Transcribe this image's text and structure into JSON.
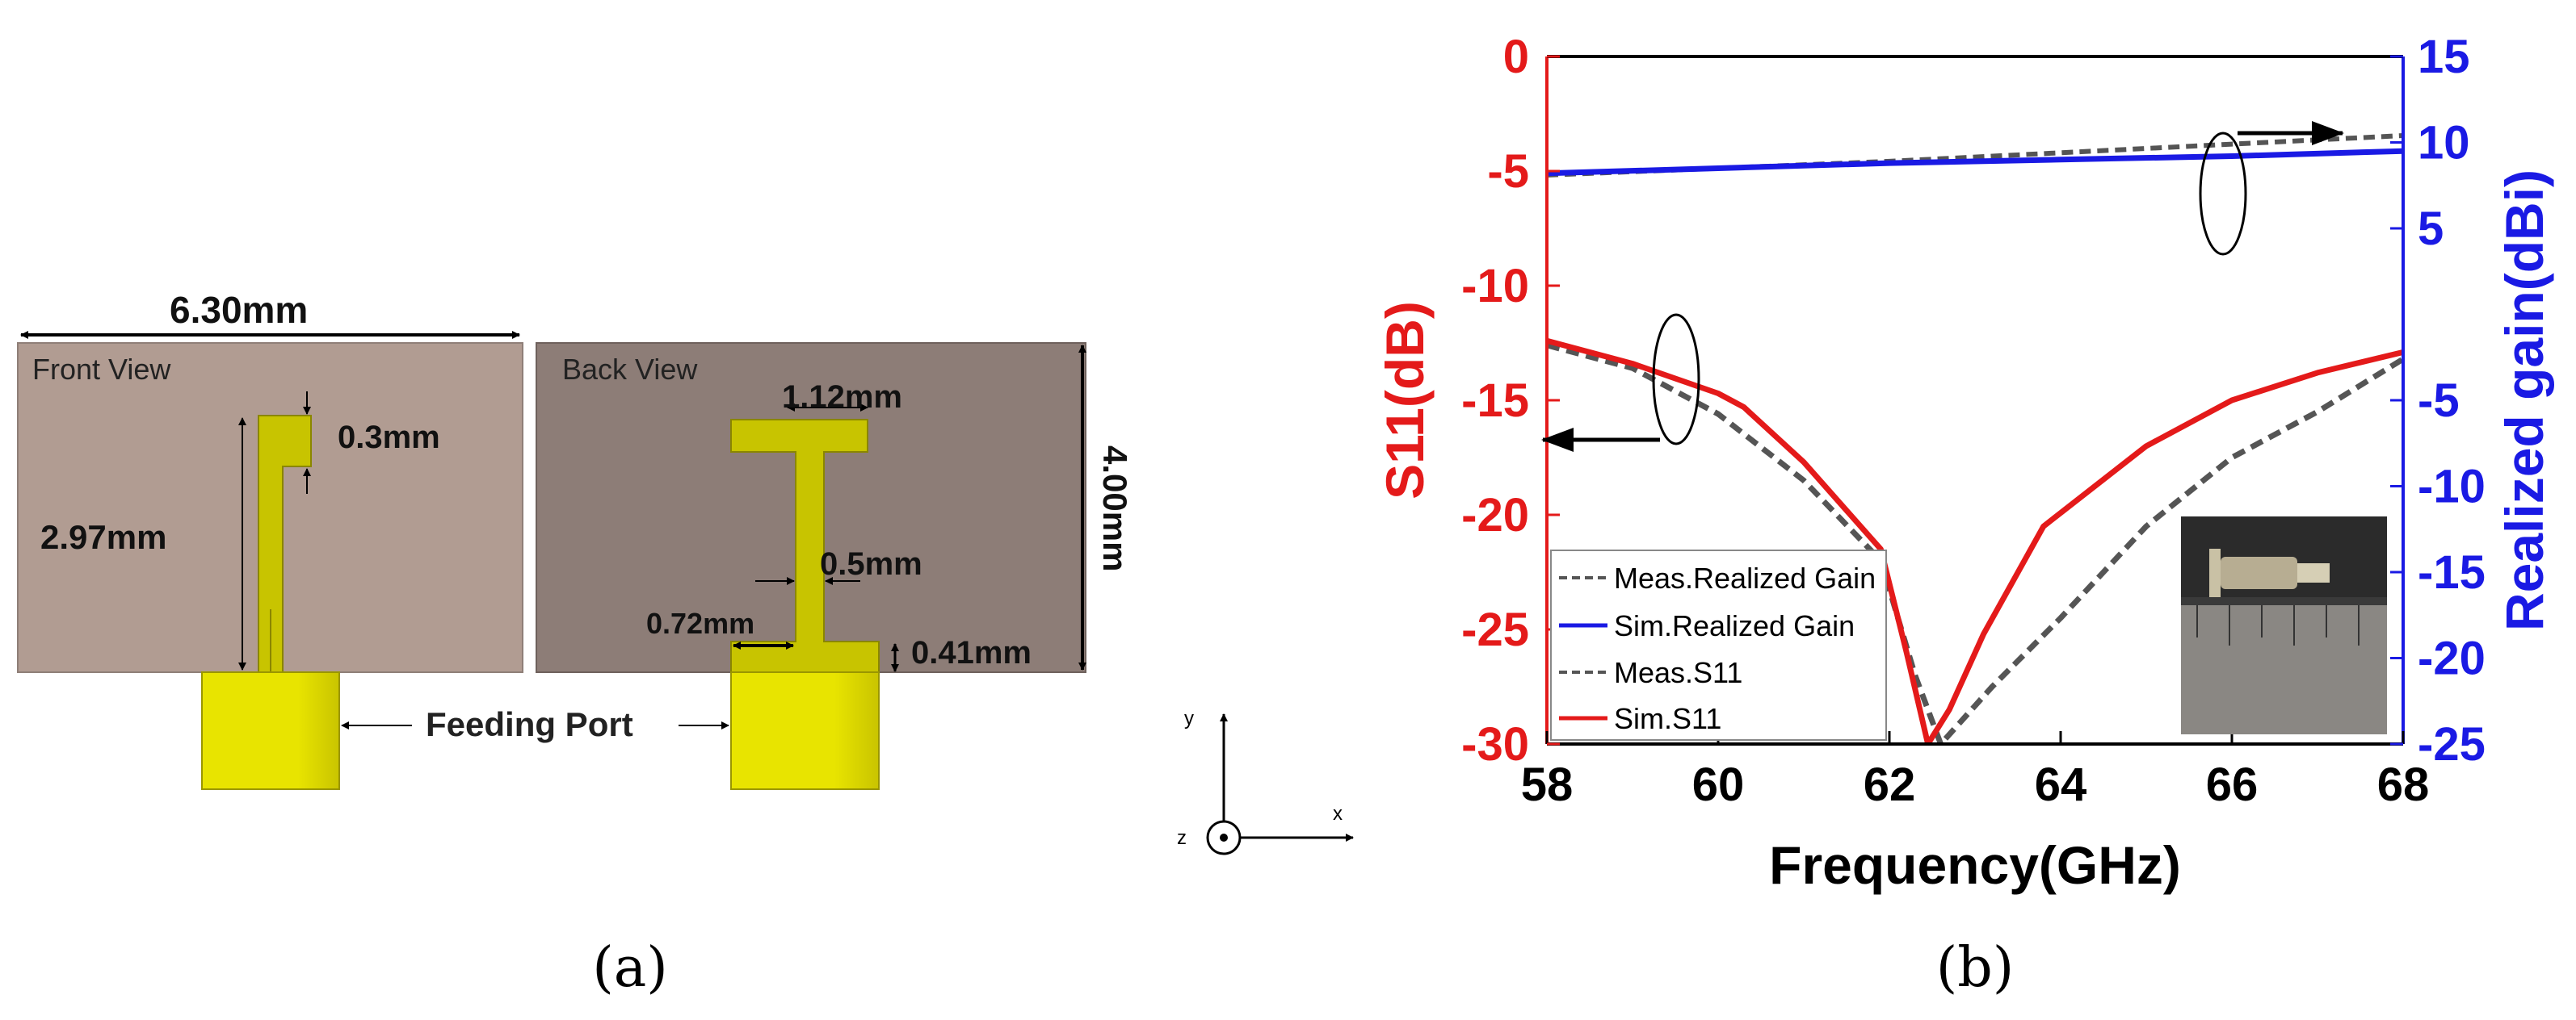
{
  "panel_a": {
    "label": "(a)",
    "front_view_label": "Front View",
    "back_view_label": "Back View",
    "dim_width": "6.30mm",
    "dim_height": "4.00mm",
    "dim_top_stub": "0.3mm",
    "dim_front_length": "2.97mm",
    "dim_back_top": "1.12mm",
    "dim_back_width": "0.5mm",
    "dim_back_bottom_width": "0.72mm",
    "dim_back_bottom_height": "0.41mm",
    "feeding_port_label": "Feeding Port",
    "axis_x": "x",
    "axis_y": "y",
    "axis_z": "z",
    "colors": {
      "front_board": "#b19c92",
      "back_board": "#8d7d77",
      "copper": "#c8c400",
      "port": "#e6e600"
    }
  },
  "panel_b": {
    "label": "(b)",
    "colors": {
      "left_axis": "#e41a1a",
      "right_axis": "#1a1ae4",
      "sim_s11": "#e41a1a",
      "sim_gain": "#1a1ae4",
      "meas": "#555555"
    }
  },
  "chart_data": {
    "type": "line",
    "xlabel": "Frequency(GHz)",
    "ylabel": "S11(dB)",
    "y2label": "Realized gain(dBi)",
    "xlim": [
      58,
      68
    ],
    "ylim": [
      -30,
      0
    ],
    "y2lim": [
      -25,
      15
    ],
    "x_ticks": [
      58,
      60,
      62,
      64,
      66,
      68
    ],
    "y_ticks": [
      0,
      -5,
      -10,
      -15,
      -20,
      -25,
      -30
    ],
    "y2_ticks": [
      15,
      10,
      5,
      -5,
      -10,
      -15,
      -20,
      -25
    ],
    "legend_position": "bottom-left",
    "series": [
      {
        "name": "Meas.Realized Gain",
        "axis": "right",
        "style": "dashed",
        "x": [
          58,
          60,
          62,
          64,
          66,
          68
        ],
        "y": [
          8.1,
          8.5,
          8.9,
          9.4,
          9.9,
          10.4
        ]
      },
      {
        "name": "Sim.Realized Gain",
        "axis": "right",
        "style": "solid",
        "x": [
          58,
          60,
          62,
          64,
          66,
          68
        ],
        "y": [
          8.2,
          8.5,
          8.8,
          9.0,
          9.2,
          9.5
        ]
      },
      {
        "name": "Meas.S11",
        "axis": "left",
        "style": "dashed",
        "x": [
          58,
          59,
          60,
          61,
          61.9,
          62.3,
          62.6,
          63.2,
          64,
          65,
          66,
          67,
          68
        ],
        "y": [
          -12.6,
          -13.6,
          -15.6,
          -18.5,
          -22,
          -27,
          -30,
          -27.5,
          -24.5,
          -20.5,
          -17.5,
          -15.5,
          -13.2
        ]
      },
      {
        "name": "Sim.S11",
        "axis": "left",
        "style": "solid",
        "x": [
          58,
          59,
          60,
          60.3,
          61,
          61.9,
          62.2,
          62.45,
          62.7,
          63.1,
          63.8,
          65,
          66,
          67,
          68
        ],
        "y": [
          -12.4,
          -13.4,
          -14.7,
          -15.3,
          -17.7,
          -21.5,
          -26,
          -30,
          -28.5,
          -25.2,
          -20.5,
          -17,
          -15,
          -13.8,
          -12.9
        ]
      }
    ]
  }
}
